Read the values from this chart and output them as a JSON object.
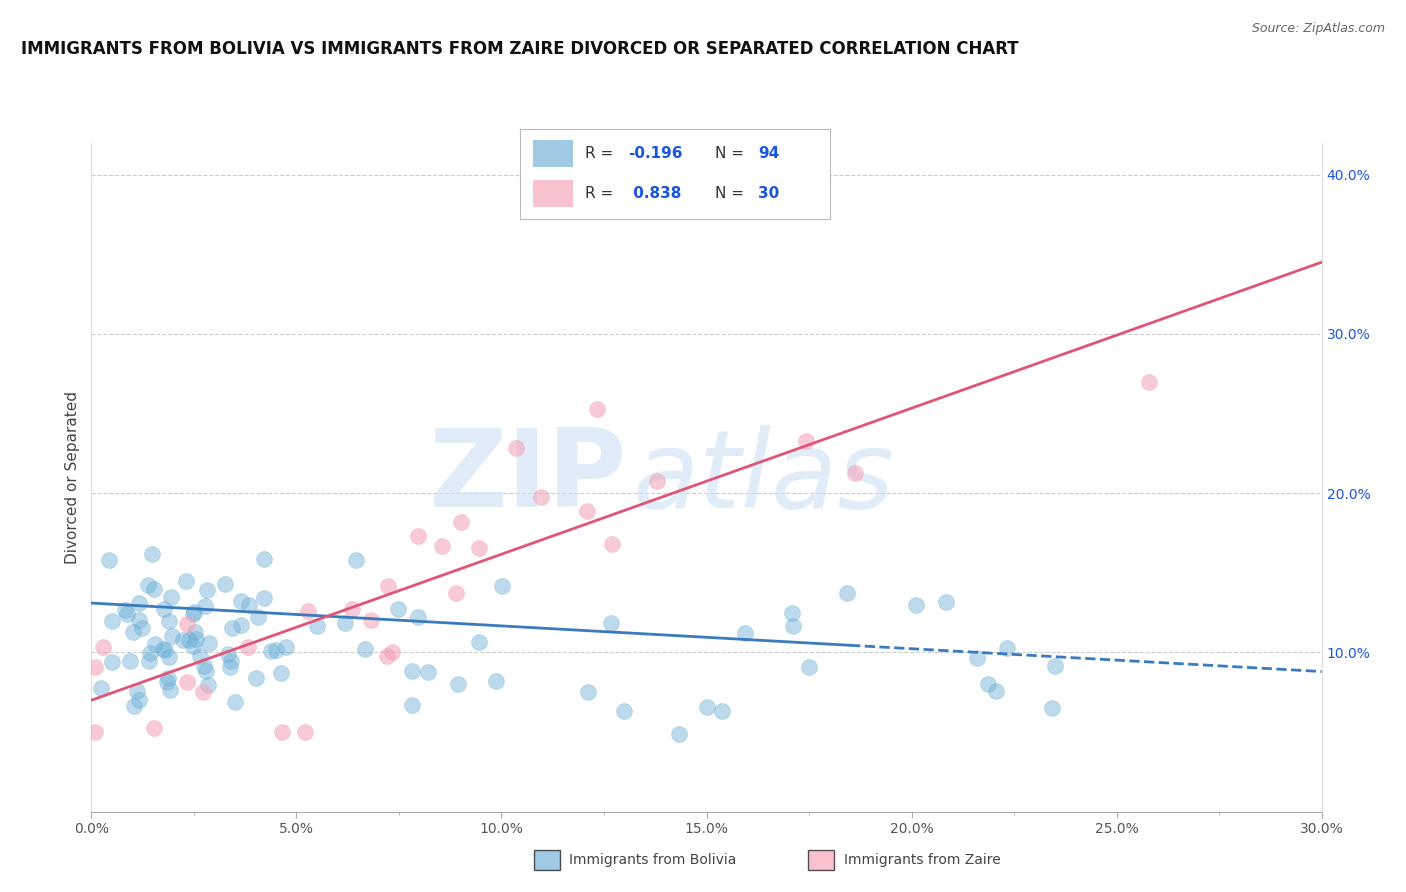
{
  "title": "IMMIGRANTS FROM BOLIVIA VS IMMIGRANTS FROM ZAIRE DIVORCED OR SEPARATED CORRELATION CHART",
  "source": "Source: ZipAtlas.com",
  "ylabel": "Divorced or Separated",
  "xlabel_bolivia": "Immigrants from Bolivia",
  "xlabel_zaire": "Immigrants from Zaire",
  "bolivia_R": -0.196,
  "bolivia_N": 94,
  "zaire_R": 0.838,
  "zaire_N": 30,
  "bolivia_color": "#6baed6",
  "zaire_color": "#f4a0b5",
  "bolivia_line_color": "#3a7abf",
  "zaire_line_color": "#e05575",
  "xmin": 0.0,
  "xmax": 0.3,
  "ymin": 0.0,
  "ymax": 0.42,
  "watermark_zip": "ZIP",
  "watermark_atlas": "atlas",
  "background_color": "#ffffff",
  "grid_color": "#cccccc",
  "title_fontsize": 12,
  "axis_label_fontsize": 11,
  "tick_fontsize": 10,
  "legend_label_color": "#333333",
  "legend_value_color": "#1a56db",
  "right_tick_color": "#1a56db",
  "bottom_tick_color": "#1a56db",
  "bolivia_line_style": "solid",
  "zaire_line_style": "dashed"
}
